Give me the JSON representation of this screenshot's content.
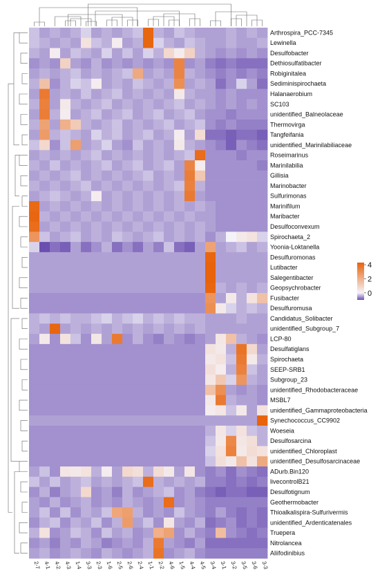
{
  "chart_data": {
    "type": "heatmap",
    "title": "",
    "colorbar": {
      "ticks": [
        4,
        2,
        0
      ],
      "colors": [
        "#6a4fb0",
        "#f5f3fa",
        "#e8630a"
      ],
      "range": [
        -1,
        4.3
      ]
    },
    "columns": [
      "2-7",
      "4-1",
      "4-2",
      "4-3",
      "1-4",
      "3-3",
      "2-3",
      "1-6",
      "2-5",
      "2-6",
      "2-4",
      "1-1",
      "2-2",
      "4-6",
      "1-5",
      "4-4",
      "4-5",
      "3-4",
      "3-1",
      "3-2",
      "3-5",
      "3-6",
      "3-3"
    ],
    "rows": [
      "Arthrospira_PCC-7345",
      "Lewinella",
      "Desulfobacter",
      "Dethiosulfatibacter",
      "Robiginitalea",
      "Sediminispirochaeta",
      "Halanaerobium",
      "SC103",
      "unidentified_Balneolaceae",
      "Thermovirga",
      "Tangfeifania",
      "unidentified_Marinilabiliaceae",
      "Roseimarinus",
      "Marinilabilia",
      "Gillisia",
      "Marinobacter",
      "Sulfurimonas",
      "Marinifilum",
      "Maribacter",
      "Desulfoconvexum",
      "Spirochaeta_2",
      "Yoonia-Loktanella",
      "Desulfuromonas",
      "Lutibacter",
      "Salegentibacter",
      "Geopsychrobacter",
      "Fusibacter",
      "Desulfuromusa",
      "Candidatus_Solibacter",
      "unidentified_Subgroup_7",
      "LCP-80",
      "Desulfatiglans",
      "Spirochaeta",
      "SEEP-SRB1",
      "Subgroup_23",
      "unidentified_Rhodobacteraceae",
      "MSBL7",
      "unidentified_Gammaproteobacteria",
      "Synechococcus_CC9902",
      "Woeseia",
      "Desulfosarcina",
      "unidentified_Chloroplast",
      "unidentified_Desulfosarcinaceae",
      "ADurb.Bin120",
      "livecontrolB21",
      "Desulfotignum",
      "Geothermobacter",
      "Thioalkalispira-Sulfurivermis",
      "unidentified_Ardenticatenales",
      "Truepera",
      "Nitrolancea",
      "Aliifodinibius"
    ],
    "values": [
      [
        -0.3,
        -0.5,
        -0.4,
        -0.5,
        -0.4,
        -0.2,
        -0.5,
        -0.4,
        -0.5,
        -0.4,
        -0.3,
        4.2,
        -0.4,
        -0.5,
        -0.3,
        -0.4,
        -0.5,
        -0.5,
        -0.5,
        -0.4,
        -0.5,
        -0.4,
        -0.5
      ],
      [
        -0.3,
        -0.4,
        -0.5,
        -0.4,
        -0.5,
        0.5,
        -0.3,
        -0.4,
        0.2,
        -0.5,
        -0.4,
        4.2,
        -0.2,
        -0.4,
        -0.5,
        -0.3,
        -0.4,
        -0.5,
        -0.5,
        -0.4,
        -0.5,
        -0.5,
        -0.4
      ],
      [
        -0.4,
        -0.5,
        0.2,
        -0.5,
        -0.3,
        -0.4,
        -0.5,
        -0.2,
        -0.5,
        -0.3,
        -0.5,
        -0.2,
        -0.4,
        0.8,
        0.2,
        1.0,
        -0.4,
        -0.5,
        -0.6,
        -0.5,
        -0.6,
        -0.5,
        -0.6
      ],
      [
        -0.6,
        -0.5,
        -0.6,
        1.0,
        -0.5,
        -0.6,
        -0.4,
        -0.6,
        -0.5,
        -0.6,
        -0.5,
        -0.6,
        -0.5,
        -0.6,
        3.3,
        -0.6,
        -0.5,
        -0.7,
        -0.8,
        -0.7,
        -0.8,
        -0.8,
        -0.8
      ],
      [
        -0.5,
        -0.4,
        -0.5,
        -0.4,
        -0.3,
        -0.5,
        -0.4,
        -0.5,
        -0.4,
        -0.3,
        2.2,
        -0.5,
        -0.4,
        -0.5,
        3.3,
        -0.4,
        -0.5,
        -0.6,
        -0.7,
        -0.6,
        -0.7,
        -0.6,
        -0.7
      ],
      [
        -0.4,
        1.5,
        -0.6,
        -0.4,
        -0.2,
        -0.3,
        0.2,
        -0.5,
        -0.4,
        -0.5,
        -0.3,
        -0.4,
        -0.5,
        -0.4,
        3.0,
        -0.5,
        -0.4,
        -0.5,
        -0.8,
        -0.6,
        -0.2,
        -0.5,
        -0.8
      ],
      [
        -0.5,
        3.6,
        -0.5,
        -0.4,
        -0.5,
        -0.3,
        -0.5,
        -0.4,
        -0.3,
        -0.5,
        -0.4,
        -0.5,
        -0.4,
        -0.5,
        0.3,
        -0.4,
        -0.5,
        -0.5,
        -0.6,
        -0.5,
        -0.6,
        -0.6,
        -0.6
      ],
      [
        -0.4,
        3.4,
        -0.5,
        0.3,
        -0.4,
        -0.5,
        -0.4,
        -0.3,
        -0.5,
        -0.4,
        -0.5,
        -0.4,
        -0.5,
        -0.4,
        -0.3,
        -0.5,
        -0.4,
        -0.5,
        -0.6,
        -0.5,
        -0.6,
        -0.5,
        -0.6
      ],
      [
        -0.5,
        3.5,
        -0.4,
        0.2,
        -0.5,
        -0.4,
        -0.3,
        -0.5,
        -0.4,
        -0.3,
        -0.5,
        -0.4,
        -0.3,
        -0.5,
        -0.4,
        -0.3,
        -0.5,
        -0.6,
        -0.6,
        -0.7,
        -0.6,
        -0.6,
        -0.6
      ],
      [
        -0.4,
        2.4,
        -0.5,
        2.0,
        1.2,
        -0.4,
        -0.5,
        -0.4,
        -0.3,
        -0.5,
        -0.4,
        -0.5,
        -0.4,
        -0.3,
        -0.5,
        -0.4,
        -0.3,
        -0.6,
        -0.7,
        -0.6,
        -0.7,
        -0.7,
        -0.7
      ],
      [
        -0.5,
        2.6,
        -0.4,
        -0.3,
        -0.4,
        -0.5,
        -0.2,
        -0.4,
        -0.3,
        -0.5,
        -0.4,
        -0.3,
        -0.5,
        -0.4,
        0.2,
        -0.5,
        0.7,
        -0.8,
        -0.8,
        -0.9,
        -0.8,
        -0.8,
        -0.9
      ],
      [
        -0.3,
        0.8,
        -0.6,
        -0.3,
        2.5,
        -0.5,
        -0.4,
        -0.2,
        -0.5,
        -0.6,
        -0.3,
        -0.5,
        -0.4,
        -0.5,
        0.3,
        -0.4,
        -0.5,
        -0.6,
        -0.7,
        -0.9,
        -0.6,
        -0.7,
        -0.8
      ],
      [
        -0.5,
        -0.4,
        -0.5,
        -0.4,
        -0.5,
        -0.4,
        -0.3,
        -0.5,
        -0.4,
        -0.5,
        -0.4,
        -0.5,
        -0.4,
        -0.5,
        -0.4,
        -0.3,
        4.0,
        -0.6,
        -0.6,
        -0.6,
        -0.7,
        -0.6,
        -0.6
      ],
      [
        -0.4,
        -0.5,
        -0.3,
        -0.5,
        -0.4,
        -0.5,
        -0.4,
        -0.3,
        -0.5,
        -0.4,
        -0.3,
        -0.5,
        -0.4,
        -0.3,
        -0.5,
        3.3,
        0.2,
        -0.6,
        -0.6,
        -0.6,
        -0.6,
        -0.6,
        -0.7
      ],
      [
        -0.5,
        -0.4,
        -0.5,
        -0.4,
        -0.3,
        -0.5,
        -0.4,
        -0.5,
        -0.4,
        -0.5,
        -0.4,
        -0.3,
        -0.5,
        -0.4,
        -0.5,
        3.5,
        1.3,
        -0.6,
        -0.6,
        -0.6,
        -0.6,
        -0.6,
        -0.6
      ],
      [
        -0.4,
        -0.5,
        -0.4,
        -0.5,
        -0.4,
        -0.3,
        -0.5,
        -0.4,
        -0.5,
        -0.4,
        -0.5,
        -0.4,
        -0.5,
        -0.4,
        -0.3,
        3.4,
        -0.4,
        -0.6,
        -0.6,
        -0.6,
        -0.6,
        -0.6,
        -0.6
      ],
      [
        -0.5,
        -0.4,
        -0.3,
        -0.4,
        -0.5,
        -0.4,
        0.2,
        -0.5,
        -0.4,
        -0.5,
        -0.4,
        -0.5,
        -0.4,
        -0.5,
        -0.4,
        3.6,
        -0.5,
        -0.6,
        -0.6,
        -0.6,
        -0.6,
        -0.6,
        -0.6
      ],
      [
        4.1,
        -0.5,
        -0.4,
        -0.5,
        -0.4,
        -0.5,
        -0.4,
        -0.5,
        -0.4,
        -0.5,
        -0.4,
        -0.5,
        -0.4,
        -0.5,
        -0.4,
        -0.5,
        -0.4,
        -0.5,
        -0.6,
        -0.6,
        -0.6,
        -0.6,
        -0.6
      ],
      [
        4.2,
        -0.4,
        -0.5,
        -0.4,
        -0.5,
        -0.4,
        -0.5,
        -0.4,
        -0.5,
        -0.4,
        -0.5,
        -0.4,
        -0.5,
        -0.4,
        -0.5,
        -0.4,
        -0.5,
        -0.5,
        -0.6,
        -0.6,
        -0.6,
        -0.6,
        -0.6
      ],
      [
        4.0,
        -0.5,
        -0.4,
        -0.5,
        -0.4,
        -0.5,
        -0.4,
        -0.5,
        -0.4,
        -0.5,
        -0.4,
        -0.5,
        -0.4,
        -0.5,
        -0.4,
        -0.5,
        -0.4,
        -0.5,
        -0.6,
        -0.6,
        -0.6,
        -0.6,
        -0.6
      ],
      [
        2.8,
        -0.3,
        -0.5,
        -0.4,
        -0.3,
        -0.5,
        -0.4,
        -0.5,
        -0.3,
        -0.4,
        -0.5,
        -0.4,
        -0.3,
        -0.5,
        -0.4,
        -0.5,
        -0.4,
        -0.6,
        -0.4,
        0.0,
        0.3,
        0.5,
        -0.2
      ],
      [
        -0.2,
        -1.0,
        -0.8,
        -0.9,
        -0.5,
        -0.8,
        -0.6,
        -0.4,
        -0.8,
        -0.6,
        -0.8,
        -0.5,
        -0.7,
        -0.3,
        -0.8,
        -0.9,
        -0.5,
        2.4,
        -0.5,
        -0.4,
        -0.3,
        -0.5,
        -0.4
      ],
      [
        -0.5,
        -0.5,
        -0.5,
        -0.5,
        -0.5,
        -0.5,
        -0.5,
        -0.5,
        -0.5,
        -0.5,
        -0.5,
        -0.5,
        -0.5,
        -0.5,
        -0.5,
        -0.5,
        -0.5,
        4.2,
        -0.5,
        -0.5,
        -0.5,
        -0.5,
        -0.5
      ],
      [
        -0.5,
        -0.5,
        -0.5,
        -0.5,
        -0.5,
        -0.5,
        -0.5,
        -0.5,
        -0.5,
        -0.5,
        -0.5,
        -0.5,
        -0.5,
        -0.5,
        -0.5,
        -0.5,
        -0.5,
        4.3,
        -0.5,
        -0.5,
        -0.5,
        -0.5,
        -0.5
      ],
      [
        -0.5,
        -0.5,
        -0.5,
        -0.5,
        -0.5,
        -0.5,
        -0.5,
        -0.5,
        -0.5,
        -0.5,
        -0.5,
        -0.5,
        -0.5,
        -0.5,
        -0.5,
        -0.5,
        -0.5,
        4.3,
        -0.5,
        -0.5,
        -0.5,
        -0.5,
        -0.5
      ],
      [
        -0.5,
        -0.5,
        -0.5,
        -0.5,
        -0.5,
        -0.5,
        -0.5,
        -0.5,
        -0.5,
        -0.5,
        -0.5,
        -0.5,
        -0.5,
        -0.5,
        -0.5,
        -0.5,
        -0.5,
        4.2,
        -0.4,
        -0.5,
        -0.4,
        -0.5,
        -0.4
      ],
      [
        -0.6,
        -0.6,
        -0.6,
        -0.6,
        -0.6,
        -0.6,
        -0.6,
        -0.6,
        -0.6,
        -0.6,
        -0.6,
        -0.6,
        -0.6,
        -0.6,
        -0.6,
        -0.6,
        -0.6,
        2.8,
        -0.5,
        0.3,
        -0.4,
        0.5,
        1.5
      ],
      [
        -0.6,
        -0.6,
        -0.6,
        -0.6,
        -0.6,
        -0.6,
        -0.6,
        -0.6,
        -0.6,
        -0.6,
        -0.6,
        -0.6,
        -0.6,
        -0.6,
        -0.6,
        -0.6,
        -0.6,
        3.0,
        0.3,
        -0.2,
        -0.4,
        -0.3,
        -0.4
      ],
      [
        -0.4,
        -0.3,
        -0.4,
        -0.3,
        -0.4,
        -0.4,
        -0.3,
        -0.2,
        -0.4,
        -0.3,
        -0.2,
        -0.4,
        -0.3,
        -0.4,
        -0.3,
        -0.4,
        -0.4,
        -0.5,
        -0.5,
        -0.5,
        -0.4,
        -0.5,
        -0.5
      ],
      [
        -0.4,
        -0.5,
        4.2,
        -0.5,
        -0.4,
        -0.5,
        -0.4,
        -0.5,
        -0.4,
        -0.5,
        -0.4,
        -0.5,
        -0.4,
        -0.5,
        -0.4,
        -0.5,
        -0.4,
        -0.5,
        -0.5,
        -0.5,
        -0.5,
        -0.5,
        -0.5
      ],
      [
        -0.5,
        0.3,
        -0.6,
        0.5,
        -0.3,
        -0.6,
        0.4,
        -0.5,
        3.6,
        -0.6,
        -0.4,
        -0.6,
        -0.7,
        -0.5,
        -0.6,
        -0.7,
        -0.6,
        -0.5,
        0.4,
        1.5,
        -0.4,
        -0.5,
        -0.6
      ],
      [
        -0.6,
        -0.6,
        -0.6,
        -0.6,
        -0.6,
        -0.6,
        -0.6,
        -0.6,
        -0.6,
        -0.6,
        -0.6,
        -0.6,
        -0.6,
        -0.6,
        -0.6,
        -0.6,
        -0.6,
        0.5,
        0.3,
        -0.4,
        3.8,
        0.8,
        -0.5
      ],
      [
        -0.6,
        -0.6,
        -0.6,
        -0.6,
        -0.6,
        -0.6,
        -0.6,
        -0.6,
        -0.6,
        -0.6,
        -0.6,
        -0.6,
        -0.6,
        -0.6,
        -0.6,
        -0.6,
        -0.6,
        0.3,
        0.5,
        -0.3,
        3.6,
        0.3,
        -0.4
      ],
      [
        -0.6,
        -0.6,
        -0.6,
        -0.6,
        -0.6,
        -0.6,
        -0.6,
        -0.6,
        -0.6,
        -0.6,
        -0.6,
        -0.6,
        -0.6,
        -0.6,
        -0.6,
        -0.6,
        -0.6,
        0.6,
        0.2,
        -0.4,
        3.4,
        -0.3,
        -0.5
      ],
      [
        -0.6,
        -0.6,
        -0.6,
        -0.6,
        -0.6,
        -0.6,
        -0.6,
        -0.6,
        -0.6,
        -0.6,
        -0.6,
        -0.6,
        -0.6,
        -0.6,
        -0.6,
        -0.6,
        -0.6,
        0.4,
        1.3,
        -0.2,
        2.8,
        -0.4,
        -0.5
      ],
      [
        -0.6,
        -0.6,
        -0.6,
        -0.6,
        -0.6,
        -0.6,
        -0.6,
        -0.6,
        -0.6,
        -0.6,
        -0.6,
        -0.6,
        -0.6,
        -0.6,
        -0.6,
        -0.6,
        -0.6,
        1.5,
        3.0,
        -0.5,
        -0.6,
        -0.5,
        -0.6
      ],
      [
        -0.6,
        -0.6,
        -0.6,
        -0.6,
        -0.6,
        -0.6,
        -0.6,
        -0.6,
        -0.6,
        -0.6,
        -0.6,
        -0.6,
        -0.6,
        -0.6,
        -0.6,
        -0.6,
        -0.6,
        0.3,
        3.6,
        -0.4,
        -0.5,
        -0.5,
        -0.6
      ],
      [
        -0.6,
        -0.6,
        -0.6,
        -0.6,
        -0.6,
        -0.6,
        -0.6,
        -0.6,
        -0.6,
        -0.6,
        -0.6,
        -0.6,
        -0.6,
        -0.6,
        -0.6,
        -0.6,
        -0.6,
        0.2,
        0.4,
        -0.3,
        0.3,
        -0.5,
        0.5
      ],
      [
        -0.5,
        -0.5,
        -0.5,
        -0.5,
        -0.5,
        -0.5,
        -0.5,
        -0.5,
        -0.5,
        -0.5,
        -0.5,
        -0.5,
        -0.5,
        -0.5,
        -0.5,
        -0.5,
        -0.5,
        -0.5,
        -0.5,
        -0.5,
        -0.5,
        -0.5,
        4.3
      ],
      [
        -0.6,
        -0.6,
        -0.6,
        -0.6,
        -0.6,
        -0.6,
        -0.6,
        -0.6,
        -0.6,
        -0.6,
        -0.6,
        -0.6,
        -0.6,
        -0.6,
        -0.6,
        -0.6,
        -0.6,
        -0.4,
        0.4,
        -0.2,
        0.5,
        -0.3,
        -0.4
      ],
      [
        -0.6,
        -0.6,
        -0.6,
        -0.6,
        -0.6,
        -0.6,
        -0.6,
        -0.6,
        -0.6,
        -0.6,
        -0.6,
        -0.6,
        -0.6,
        -0.6,
        -0.6,
        -0.6,
        -0.6,
        -0.3,
        0.3,
        3.2,
        0.4,
        0.6,
        -0.4
      ],
      [
        -0.6,
        -0.6,
        -0.6,
        -0.6,
        -0.6,
        -0.6,
        -0.6,
        -0.6,
        -0.6,
        -0.6,
        -0.6,
        -0.6,
        -0.6,
        -0.6,
        -0.6,
        -0.6,
        -0.6,
        -0.2,
        0.5,
        3.4,
        0.3,
        0.7,
        0.5
      ],
      [
        -0.6,
        -0.6,
        -0.6,
        -0.6,
        -0.6,
        -0.6,
        -0.6,
        -0.6,
        -0.6,
        -0.6,
        -0.6,
        -0.6,
        -0.6,
        -0.6,
        -0.6,
        -0.6,
        -0.6,
        -0.3,
        0.6,
        0.3,
        1.5,
        0.5,
        2.2
      ],
      [
        -0.5,
        -0.3,
        -0.6,
        0.4,
        0.3,
        0.5,
        -0.4,
        0.2,
        -0.5,
        0.8,
        0.6,
        -0.4,
        0.7,
        0.3,
        -0.5,
        0.4,
        -0.6,
        -0.7,
        -0.6,
        -0.8,
        -0.6,
        -0.7,
        -0.8
      ],
      [
        -0.3,
        -0.5,
        -0.3,
        -0.5,
        -0.4,
        -0.3,
        -0.5,
        -0.4,
        -0.5,
        -0.4,
        -0.3,
        4.0,
        -0.4,
        -0.5,
        -0.4,
        -0.5,
        -0.4,
        -0.7,
        -0.7,
        -0.8,
        -0.7,
        -0.8,
        -0.7
      ],
      [
        -0.6,
        -0.4,
        -0.7,
        -0.5,
        -0.4,
        0.8,
        -0.6,
        -0.5,
        -0.7,
        -0.4,
        -0.6,
        -0.5,
        -0.4,
        -0.3,
        -0.6,
        -0.5,
        -0.7,
        -0.8,
        -0.9,
        -0.8,
        -0.8,
        -0.9,
        -0.9
      ],
      [
        -0.5,
        -0.6,
        -0.4,
        -0.6,
        -0.5,
        -0.4,
        -0.6,
        -0.5,
        -0.6,
        -0.4,
        -0.5,
        -0.6,
        -0.5,
        4.0,
        -0.6,
        -0.5,
        -0.6,
        -0.7,
        -0.7,
        -0.7,
        -0.7,
        -0.7,
        -0.7
      ],
      [
        -0.5,
        -0.3,
        -0.6,
        -0.3,
        -0.6,
        -0.4,
        -0.5,
        -0.3,
        2.3,
        2.5,
        -0.4,
        -0.6,
        -0.5,
        -0.6,
        -0.3,
        -0.5,
        -0.6,
        -0.7,
        -0.5,
        -0.7,
        -0.8,
        -0.7,
        -0.8
      ],
      [
        -0.6,
        -0.4,
        -0.3,
        -0.6,
        -0.4,
        -0.5,
        -0.3,
        -0.6,
        -0.4,
        2.6,
        -0.5,
        -0.3,
        -0.6,
        0.4,
        -0.5,
        -0.6,
        -0.4,
        -0.8,
        -0.7,
        -0.6,
        -0.8,
        -0.7,
        -0.8
      ],
      [
        -0.4,
        0.5,
        -0.6,
        -0.5,
        -0.3,
        -0.4,
        -0.6,
        -0.3,
        -0.5,
        -0.4,
        -0.6,
        -0.5,
        2.0,
        2.4,
        -0.6,
        -0.4,
        -0.6,
        -0.7,
        1.6,
        -0.6,
        -0.7,
        -0.8,
        -0.7
      ],
      [
        -0.6,
        -0.5,
        -0.7,
        -0.5,
        -0.6,
        -0.4,
        -0.5,
        -0.7,
        -0.6,
        -0.5,
        -0.6,
        -0.4,
        3.6,
        -0.5,
        -0.6,
        -0.7,
        -0.5,
        -0.8,
        -0.8,
        -0.8,
        -0.8,
        -0.8,
        -0.8
      ],
      [
        -0.5,
        -0.4,
        -0.6,
        -0.5,
        -0.4,
        -0.5,
        -0.6,
        -0.4,
        -0.5,
        -0.6,
        -0.5,
        -0.4,
        3.8,
        -0.6,
        -0.5,
        -0.4,
        -0.6,
        -0.7,
        -0.7,
        -0.7,
        -0.7,
        -0.7,
        -0.7
      ]
    ]
  }
}
